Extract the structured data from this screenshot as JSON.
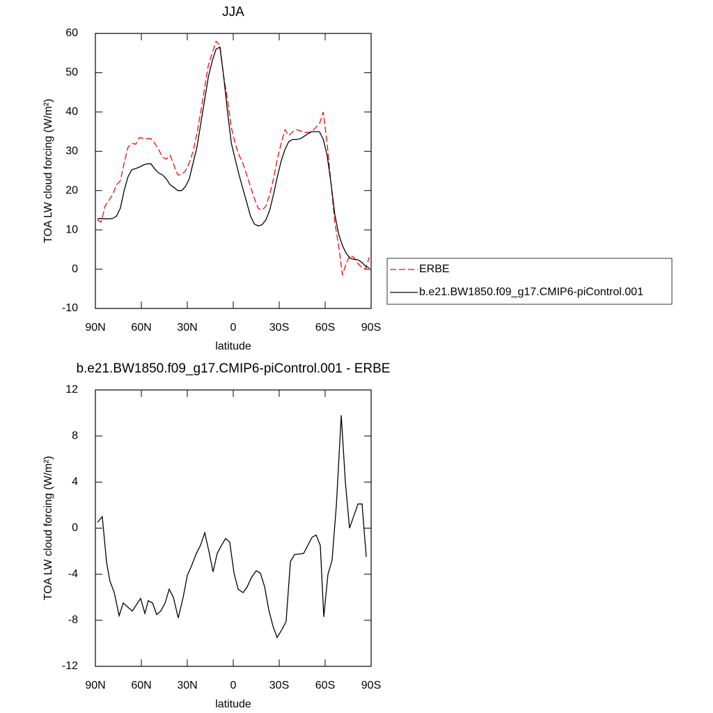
{
  "chart_data": [
    {
      "type": "line",
      "title": "JJA",
      "x_label": "latitude",
      "y_label": "TOA LW cloud forcing (W/m²)",
      "xlim": [
        90,
        -90
      ],
      "ylim": [
        -10,
        60
      ],
      "xticks": [
        {
          "value": 90,
          "label": "90N"
        },
        {
          "value": 60,
          "label": "60N"
        },
        {
          "value": 30,
          "label": "30N"
        },
        0,
        {
          "value": -30,
          "label": "30S"
        },
        {
          "value": -60,
          "label": "60S"
        },
        {
          "value": -90,
          "label": "90S"
        }
      ],
      "yticks": [
        -10,
        0,
        10,
        20,
        30,
        40,
        50,
        60
      ],
      "legend": "right",
      "x": [
        88.75,
        86.25,
        83.75,
        81.25,
        78.75,
        76.25,
        73.75,
        71.25,
        68.75,
        66.25,
        63.75,
        61.25,
        58.75,
        56.25,
        53.75,
        51.25,
        48.75,
        46.25,
        43.75,
        41.25,
        38.75,
        36.25,
        33.75,
        31.25,
        28.75,
        26.25,
        23.75,
        21.25,
        18.75,
        16.25,
        13.75,
        11.25,
        8.75,
        6.25,
        3.75,
        1.25,
        -1.25,
        -3.75,
        -6.25,
        -8.75,
        -11.25,
        -13.75,
        -16.25,
        -18.75,
        -21.25,
        -23.75,
        -26.25,
        -28.75,
        -31.25,
        -33.75,
        -36.25,
        -38.75,
        -41.25,
        -43.75,
        -46.25,
        -48.75,
        -51.25,
        -53.75,
        -56.25,
        -58.75,
        -61.25,
        -63.75,
        -66.25,
        -68.75,
        -71.25,
        -73.75,
        -76.25,
        -78.75,
        -81.25,
        -83.75,
        -86.25,
        -88.75
      ],
      "series": [
        {
          "name": "ERBE",
          "color": "#ff0000",
          "line_style": "dashed",
          "values": [
            12.5,
            12,
            16,
            17.5,
            19,
            21.5,
            22.5,
            27,
            31,
            32,
            31.8,
            33.5,
            33.3,
            33.2,
            33.2,
            32,
            30.5,
            28.5,
            28,
            29,
            26.5,
            24,
            24,
            25,
            27,
            30,
            34.5,
            40,
            46,
            52,
            55,
            58,
            57,
            49,
            43,
            36,
            32,
            29,
            27,
            24,
            21,
            18,
            15.5,
            15,
            16,
            19,
            23,
            28,
            32,
            35.5,
            34,
            35,
            35.5,
            35.2,
            34.8,
            34.8,
            35,
            36,
            37,
            40,
            32,
            22,
            12,
            6,
            -1.5,
            1.5,
            3.5,
            3,
            1.5,
            0.5,
            0,
            3
          ]
        },
        {
          "name": "b.e21.BW1850.f09_g17.CMIP6-piControl.001",
          "color": "#000000",
          "line_style": "solid",
          "values": [
            12.8,
            12.9,
            12.8,
            12.8,
            12.9,
            13.5,
            15.5,
            20,
            23.5,
            25.3,
            25.6,
            26,
            26.5,
            26.8,
            26.8,
            25.5,
            24.5,
            24,
            23,
            21.5,
            20.8,
            20,
            20,
            21,
            23,
            27,
            31,
            37,
            43,
            49,
            53,
            56,
            56.5,
            49,
            40,
            32,
            28,
            24,
            20.5,
            17,
            13.5,
            11.5,
            11,
            11.3,
            12.5,
            15,
            19,
            23.5,
            27.5,
            30.5,
            32.5,
            33,
            33,
            33.2,
            33.8,
            34.5,
            35,
            35,
            35,
            33,
            29,
            22,
            14,
            9,
            6,
            4,
            2.8,
            2.5,
            2.4,
            1.8,
            0.8,
            0.3
          ]
        }
      ]
    },
    {
      "type": "line",
      "title": "b.e21.BW1850.f09_g17.CMIP6-piControl.001 - ERBE",
      "x_label": "latitude",
      "y_label": "TOA LW cloud forcing (W/m²)",
      "xlim": [
        90,
        -90
      ],
      "ylim": [
        -12,
        12
      ],
      "xticks": [
        {
          "value": 90,
          "label": "90N"
        },
        {
          "value": 60,
          "label": "60N"
        },
        {
          "value": 30,
          "label": "30N"
        },
        0,
        {
          "value": -30,
          "label": "30S"
        },
        {
          "value": -60,
          "label": "60S"
        },
        {
          "value": -90,
          "label": "90S"
        }
      ],
      "yticks": [
        -12,
        -8,
        -4,
        0,
        4,
        8,
        12
      ],
      "x": [
        88.6,
        85.5,
        82.7,
        80.5,
        77.7,
        74.5,
        71.8,
        65.9,
        60.5,
        57.7,
        55.5,
        52.7,
        50,
        47.3,
        44.5,
        41.8,
        39.1,
        35.9,
        32.7,
        30,
        27.3,
        24.1,
        21.4,
        18.6,
        15.9,
        13.2,
        10.5,
        7.7,
        5,
        2.3,
        -0.5,
        -3.2,
        -6.4,
        -9.1,
        -11.8,
        -15,
        -17.7,
        -20.5,
        -23.2,
        -25.9,
        -28.6,
        -31.8,
        -34.5,
        -37.3,
        -40,
        -45.9,
        -51.4,
        -54.1,
        -56.8,
        -59.1,
        -61.8,
        -64.5,
        -67.3,
        -70.5,
        -73.2,
        -75.9,
        -81.4,
        -84.1,
        -86.8
      ],
      "series": [
        {
          "color": "#000000",
          "line_style": "solid",
          "values": [
            0.5,
            1,
            -3,
            -4.6,
            -5.6,
            -7.6,
            -6.5,
            -7.2,
            -6.1,
            -7.4,
            -6.3,
            -6.5,
            -7.5,
            -7.2,
            -6.5,
            -5.3,
            -6,
            -7.8,
            -6,
            -4.1,
            -3.3,
            -2.2,
            -1.5,
            -0.4,
            -2,
            -3.8,
            -2.2,
            -1.5,
            -0.9,
            -1.2,
            -3.9,
            -5.3,
            -5.6,
            -5.1,
            -4.3,
            -3.7,
            -3.9,
            -5.1,
            -7.1,
            -8.5,
            -9.5,
            -8.8,
            -8.1,
            -2.9,
            -2.3,
            -2.2,
            -0.8,
            -0.6,
            -1.5,
            -7.7,
            -4,
            -2.8,
            2,
            9.8,
            4,
            0,
            2.1,
            2.1,
            -2.5
          ]
        }
      ]
    }
  ]
}
